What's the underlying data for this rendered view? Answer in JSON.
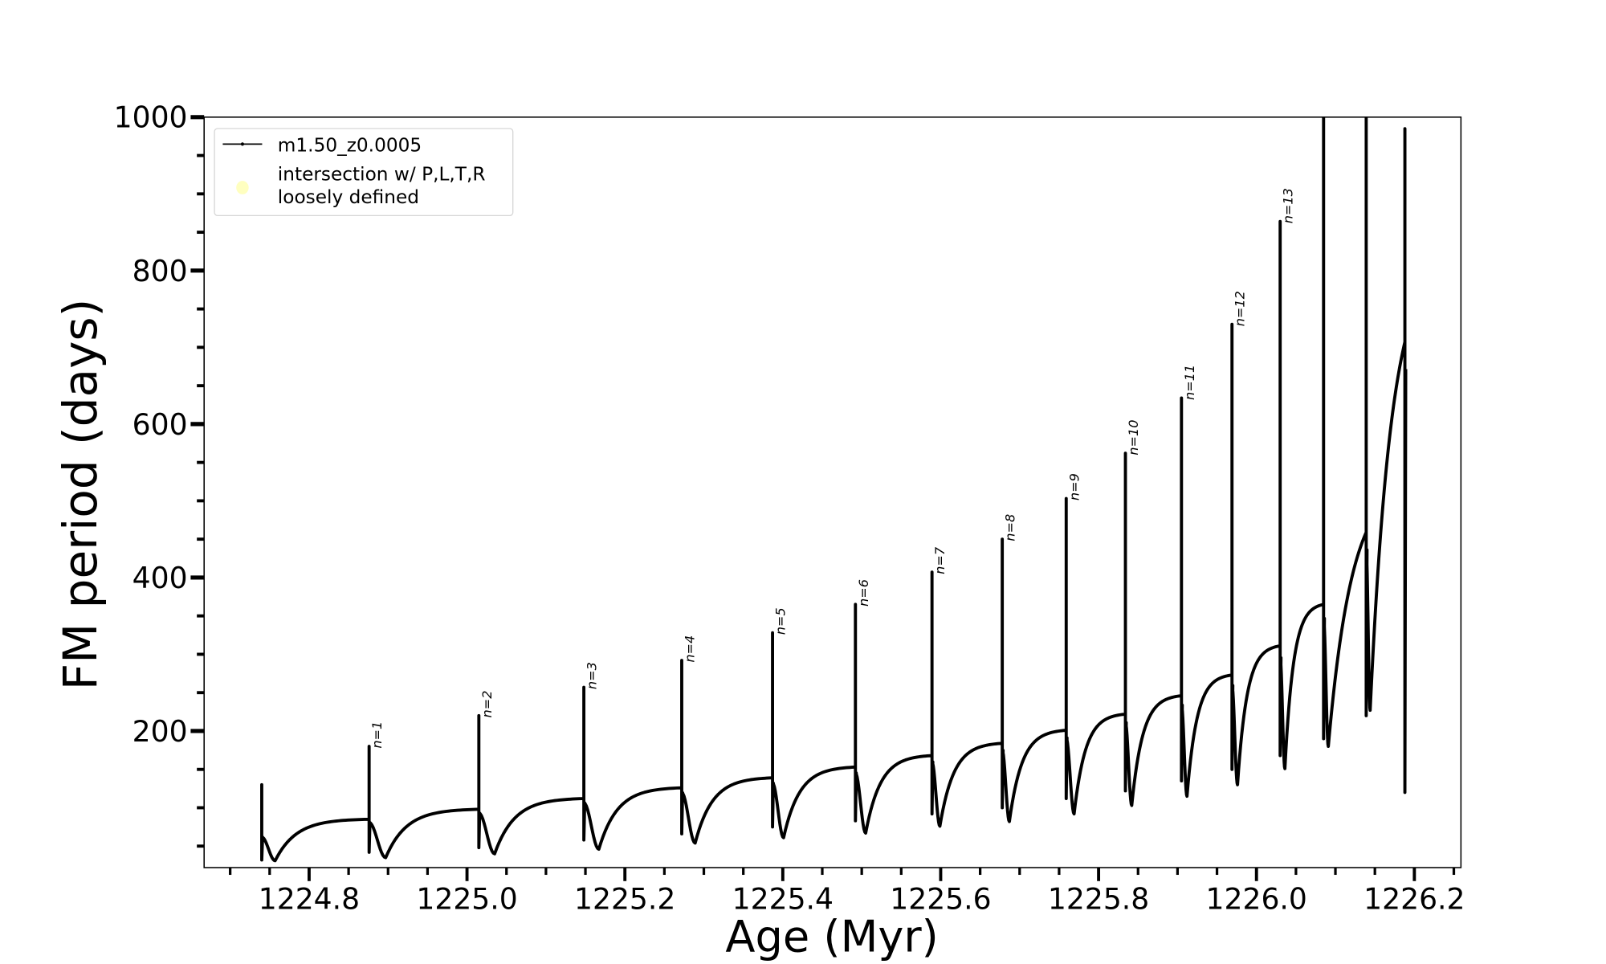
{
  "chart_data": {
    "type": "line",
    "xlabel": "Age (Myr)",
    "ylabel": "FM period (days)",
    "xlim": [
      1224.667,
      1226.259
    ],
    "ylim": [
      22,
      1000
    ],
    "xticks": [
      1224.8,
      1225.0,
      1225.2,
      1225.4,
      1225.6,
      1225.8,
      1226.0,
      1226.2
    ],
    "xtick_labels": [
      "1224.8",
      "1225.0",
      "1225.2",
      "1225.4",
      "1225.6",
      "1225.8",
      "1226.0",
      "1226.2"
    ],
    "yticks": [
      200,
      400,
      600,
      800,
      1000
    ],
    "ytick_labels": [
      "200",
      "400",
      "600",
      "800",
      "1000"
    ],
    "x_minor_step": 0.05,
    "y_minor_step": 50,
    "grid": false,
    "legend": {
      "placement": "top-left",
      "entries": [
        {
          "label": "m1.50_z0.0005",
          "kind": "line-marker",
          "color": "#000000"
        },
        {
          "label": "intersection w/ P,L,T,R\nloosely defined",
          "label_lines": [
            "intersection w/ P,L,T,R",
            "loosely defined"
          ],
          "kind": "marker",
          "color": "#ffffc0"
        }
      ]
    },
    "series": [
      {
        "name": "m1.50_z0.0005",
        "color": "#000000",
        "pulses": [
          {
            "age": 1224.74,
            "pre": 65,
            "peak": 130,
            "low": 32,
            "min_age": 1224.757,
            "min": 31,
            "label": ""
          },
          {
            "age": 1224.876,
            "pre": 85,
            "peak": 180,
            "low": 42,
            "min_age": 1224.897,
            "min": 35,
            "label": "n=1"
          },
          {
            "age": 1225.015,
            "pre": 98,
            "peak": 220,
            "low": 48,
            "min_age": 1225.035,
            "min": 40,
            "label": "n=2"
          },
          {
            "age": 1225.148,
            "pre": 112,
            "peak": 257,
            "low": 58,
            "min_age": 1225.167,
            "min": 46,
            "label": "n=3"
          },
          {
            "age": 1225.272,
            "pre": 126,
            "peak": 292,
            "low": 66,
            "min_age": 1225.289,
            "min": 54,
            "label": "n=4"
          },
          {
            "age": 1225.387,
            "pre": 139,
            "peak": 328,
            "low": 75,
            "min_age": 1225.401,
            "min": 61,
            "label": "n=5"
          },
          {
            "age": 1225.492,
            "pre": 153,
            "peak": 365,
            "low": 83,
            "min_age": 1225.505,
            "min": 67,
            "label": "n=6"
          },
          {
            "age": 1225.589,
            "pre": 168,
            "peak": 407,
            "low": 92,
            "min_age": 1225.599,
            "min": 76,
            "label": "n=7"
          },
          {
            "age": 1225.678,
            "pre": 184,
            "peak": 450,
            "low": 100,
            "min_age": 1225.687,
            "min": 82,
            "label": "n=8"
          },
          {
            "age": 1225.759,
            "pre": 201,
            "peak": 503,
            "low": 112,
            "min_age": 1225.769,
            "min": 92,
            "label": "n=9"
          },
          {
            "age": 1225.834,
            "pre": 222,
            "peak": 562,
            "low": 122,
            "min_age": 1225.842,
            "min": 103,
            "label": "n=10"
          },
          {
            "age": 1225.905,
            "pre": 246,
            "peak": 634,
            "low": 135,
            "min_age": 1225.912,
            "min": 115,
            "label": "n=11"
          },
          {
            "age": 1225.969,
            "pre": 273,
            "peak": 730,
            "low": 150,
            "min_age": 1225.976,
            "min": 130,
            "label": "n=12"
          },
          {
            "age": 1226.03,
            "pre": 311,
            "peak": 864,
            "low": 168,
            "min_age": 1226.036,
            "min": 151,
            "label": "n=13"
          },
          {
            "age": 1226.085,
            "pre": 365,
            "peak": 1000,
            "low": 190,
            "min_age": 1226.091,
            "min": 180,
            "label": ""
          },
          {
            "age": 1226.139,
            "pre": 459,
            "peak": 1000,
            "low": 220,
            "min_age": 1226.144,
            "min": 227,
            "label": ""
          },
          {
            "age": 1226.188,
            "pre": 707,
            "peak": 985,
            "low": 120,
            "min_age": null,
            "min": null,
            "label": ""
          }
        ]
      }
    ]
  }
}
